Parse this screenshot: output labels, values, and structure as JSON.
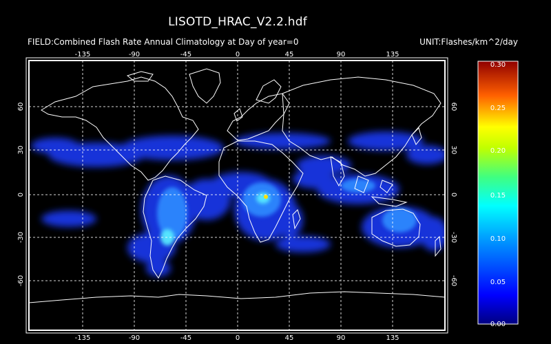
{
  "title": "LISOTD_HRAC_V2.2.hdf",
  "field_label": "FIELD:Combined Flash Rate Annual Climatology at Day of year=0",
  "unit_label": "UNIT:Flashes/km^2/day",
  "longitude_ticks": [
    "-135",
    "-90",
    "-45",
    "0",
    "45",
    "90",
    "135"
  ],
  "latitude_ticks": [
    "60",
    "30",
    "0",
    "-30",
    "-60"
  ],
  "colorbar": {
    "min": 0.0,
    "max": 0.3,
    "labels": [
      "0.30",
      "0.25",
      "0.20",
      "0.15",
      "0.10",
      "0.05",
      "0.00"
    ],
    "stops": [
      "#000080",
      "#0000ff",
      "#0080ff",
      "#00ffff",
      "#00ff80",
      "#80ff00",
      "#ffff00",
      "#ff8000",
      "#ff0000",
      "#800000"
    ]
  },
  "colors": {
    "background": "#000000",
    "frame": "#ffffff",
    "coastline": "#ffffff",
    "low_activity": "#1a3cff",
    "moderate_activity": "#2f8cff",
    "high_activity": "#5af0ff",
    "peak": "#ffe000"
  }
}
